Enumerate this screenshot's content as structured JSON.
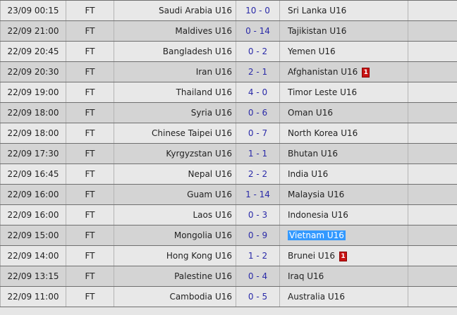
{
  "colors": {
    "score": "#2a2aa8",
    "red_card": "#c81414",
    "selection": "#3399ff"
  },
  "matches": [
    {
      "time": "23/09 00:15",
      "status": "FT",
      "home": "Saudi Arabia U16",
      "score": "10 - 0",
      "away": "Sri Lanka U16",
      "away_red_cards": ""
    },
    {
      "time": "22/09 21:00",
      "status": "FT",
      "home": "Maldives U16",
      "score": "0 - 14",
      "away": "Tajikistan U16",
      "away_red_cards": ""
    },
    {
      "time": "22/09 20:45",
      "status": "FT",
      "home": "Bangladesh U16",
      "score": "0 - 2",
      "away": "Yemen U16",
      "away_red_cards": ""
    },
    {
      "time": "22/09 20:30",
      "status": "FT",
      "home": "Iran U16",
      "score": "2 - 1",
      "away": "Afghanistan U16",
      "away_red_cards": "1"
    },
    {
      "time": "22/09 19:00",
      "status": "FT",
      "home": "Thailand U16",
      "score": "4 - 0",
      "away": "Timor Leste U16",
      "away_red_cards": ""
    },
    {
      "time": "22/09 18:00",
      "status": "FT",
      "home": "Syria U16",
      "score": "0 - 6",
      "away": "Oman U16",
      "away_red_cards": ""
    },
    {
      "time": "22/09 18:00",
      "status": "FT",
      "home": "Chinese Taipei U16",
      "score": "0 - 7",
      "away": "North Korea U16",
      "away_red_cards": ""
    },
    {
      "time": "22/09 17:30",
      "status": "FT",
      "home": "Kyrgyzstan U16",
      "score": "1 - 1",
      "away": "Bhutan U16",
      "away_red_cards": ""
    },
    {
      "time": "22/09 16:45",
      "status": "FT",
      "home": "Nepal U16",
      "score": "2 - 2",
      "away": "India U16",
      "away_red_cards": ""
    },
    {
      "time": "22/09 16:00",
      "status": "FT",
      "home": "Guam U16",
      "score": "1 - 14",
      "away": "Malaysia U16",
      "away_red_cards": ""
    },
    {
      "time": "22/09 16:00",
      "status": "FT",
      "home": "Laos U16",
      "score": "0 - 3",
      "away": "Indonesia U16",
      "away_red_cards": ""
    },
    {
      "time": "22/09 15:00",
      "status": "FT",
      "home": "Mongolia U16",
      "score": "0 - 9",
      "away": "Vietnam U16",
      "away_red_cards": "",
      "away_selected": true
    },
    {
      "time": "22/09 14:00",
      "status": "FT",
      "home": "Hong Kong U16",
      "score": "1 - 2",
      "away": "Brunei U16",
      "away_red_cards": "1"
    },
    {
      "time": "22/09 13:15",
      "status": "FT",
      "home": "Palestine U16",
      "score": "0 - 4",
      "away": "Iraq U16",
      "away_red_cards": ""
    },
    {
      "time": "22/09 11:00",
      "status": "FT",
      "home": "Cambodia U16",
      "score": "0 - 5",
      "away": "Australia U16",
      "away_red_cards": ""
    }
  ]
}
